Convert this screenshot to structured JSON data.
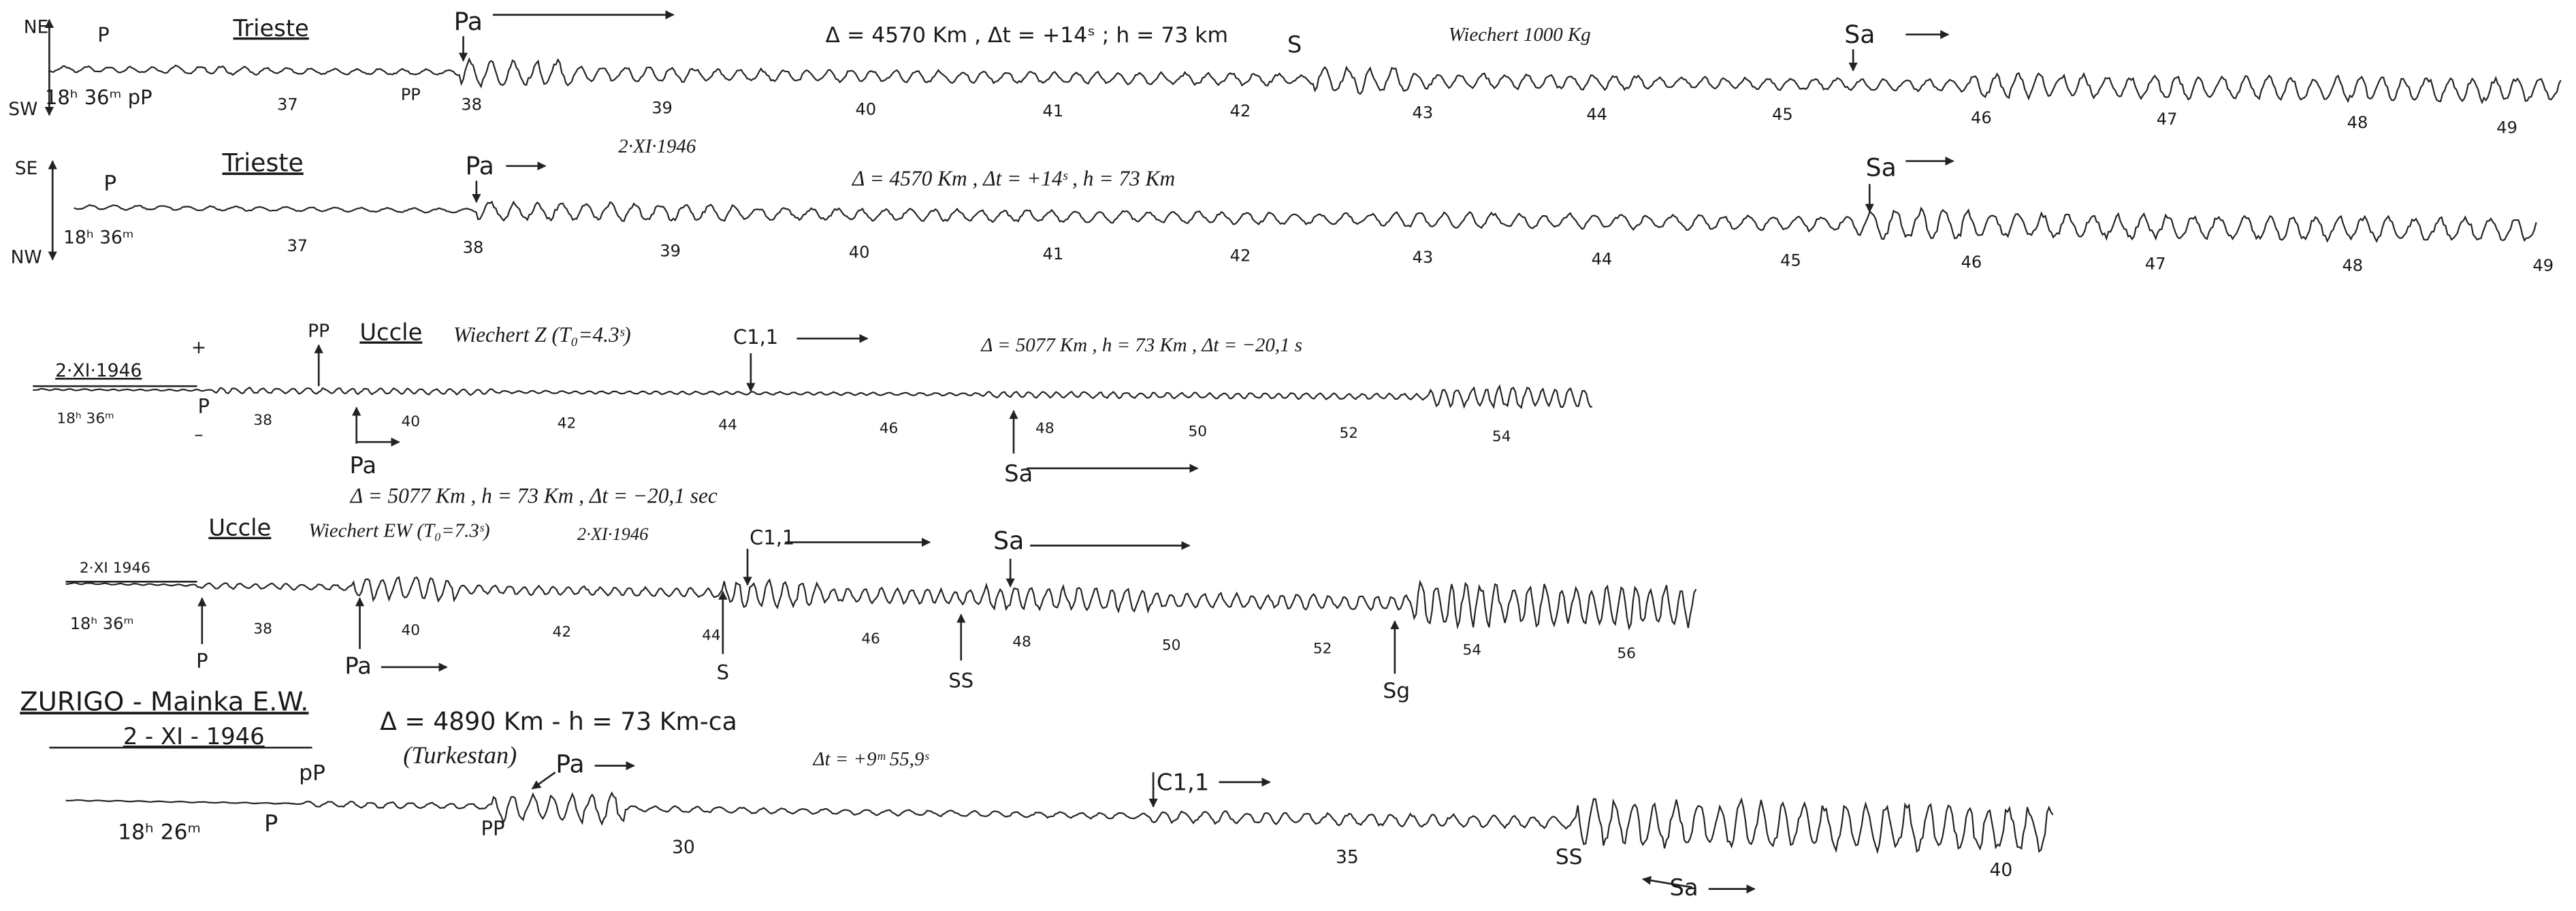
{
  "traces": [
    {
      "texts": [
        "NE",
        "SW",
        "P",
        "Trieste",
        "Pa",
        "Δ = 4570 Km , Δt = +14ˢ ; h = 73 km",
        "S",
        "Wiechert 1000 Kg",
        "Sa",
        "18ʰ 36ᵐ pP",
        "37",
        "PP",
        "38",
        "39",
        "40",
        "41",
        "42",
        "43",
        "44",
        "45",
        "46",
        "47",
        "48",
        "49"
      ]
    },
    {
      "texts": [
        "SE",
        "NW",
        "P",
        "Trieste",
        "Pa",
        "2·XI·1946",
        "Δ = 4570 Km , Δt = +14ˢ , h = 73 Km",
        "Sa",
        "18ʰ 36ᵐ",
        "37",
        "38",
        "39",
        "40",
        "41",
        "42",
        "43",
        "44",
        "45",
        "46",
        "47",
        "48",
        "49"
      ]
    },
    {
      "texts": [
        "2·XI·1946",
        "18ʰ 36ᵐ",
        "+",
        "P",
        "–",
        "PP",
        "Uccle",
        "Wiechert Z (T₀=4.3ˢ)",
        "C1,1",
        "Δ = 5077 Km , h = 73 Km , Δt = −20,1 s",
        "38",
        "40",
        "42",
        "44",
        "46",
        "48",
        "50",
        "52",
        "54",
        "Pa",
        "Sa",
        "Δ = 5077 Km , h = 73 Km , Δt = −20,1 sec"
      ]
    },
    {
      "texts": [
        "Uccle",
        "Wiechert EW (T₀=7.3ˢ)",
        "2·XI·1946",
        "C1,1",
        "Sa",
        "2·XI 1946",
        "18ʰ 36ᵐ",
        "38",
        "40",
        "42",
        "44",
        "46",
        "48",
        "50",
        "52",
        "54",
        "56",
        "P",
        "Pa",
        "S",
        "SS",
        "Sg"
      ]
    },
    {
      "texts": [
        "ZURIGO - Mainka E.W.",
        "2 - XI - 1946",
        "Δ = 4890 Km - h = 73 Km-ca",
        "(Turkestan)",
        "Pa",
        "pP",
        "Δt = +9ᵐ 55,9ˢ",
        "C1,1",
        "18ʰ 26ᵐ",
        "P",
        "PP",
        "30",
        "35",
        "SS",
        "40",
        "Sa"
      ]
    }
  ]
}
